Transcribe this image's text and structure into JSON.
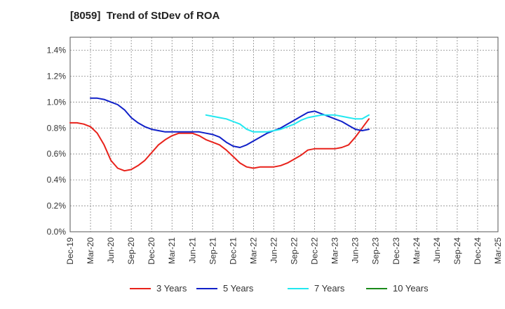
{
  "header": {
    "title": "[8059]  Trend of StDev of ROA"
  },
  "chart_data": {
    "type": "line",
    "title": "[8059]  Trend of StDev of ROA",
    "xlabel": "",
    "ylabel": "",
    "ylim": [
      0,
      1.5
    ],
    "grid": true,
    "legend_position": "bottom",
    "y_ticks": [
      "0.0%",
      "0.2%",
      "0.4%",
      "0.6%",
      "0.8%",
      "1.0%",
      "1.2%",
      "1.4%"
    ],
    "x_ticks": [
      "Dec-19",
      "Mar-20",
      "Jun-20",
      "Sep-20",
      "Dec-20",
      "Mar-21",
      "Jun-21",
      "Sep-21",
      "Dec-21",
      "Mar-22",
      "Jun-22",
      "Sep-22",
      "Dec-22",
      "Mar-23",
      "Jun-23",
      "Sep-23",
      "Dec-23",
      "Mar-24",
      "Jun-24",
      "Sep-24",
      "Dec-24",
      "Mar-25"
    ],
    "series": [
      {
        "name": "3 Years",
        "color": "#e8221b",
        "values": [
          0.84,
          0.84,
          0.83,
          0.81,
          0.76,
          0.67,
          0.55,
          0.49,
          0.47,
          0.48,
          0.51,
          0.55,
          0.61,
          0.67,
          0.71,
          0.74,
          0.76,
          0.76,
          0.76,
          0.74,
          0.71,
          0.69,
          0.67,
          0.63,
          0.58,
          0.53,
          0.5,
          0.49,
          0.5,
          0.5,
          0.5,
          0.51,
          0.53,
          0.56,
          0.59,
          0.63,
          0.64,
          0.64,
          0.64,
          0.64,
          0.65,
          0.67,
          0.73,
          0.8,
          0.87
        ]
      },
      {
        "name": "5 Years",
        "color": "#1020c8",
        "values": [
          null,
          null,
          null,
          1.03,
          1.03,
          1.02,
          1.0,
          0.98,
          0.94,
          0.88,
          0.84,
          0.81,
          0.79,
          0.78,
          0.77,
          0.77,
          0.77,
          0.77,
          0.77,
          0.77,
          0.76,
          0.75,
          0.73,
          0.69,
          0.66,
          0.65,
          0.67,
          0.7,
          0.73,
          0.76,
          0.78,
          0.8,
          0.83,
          0.86,
          0.89,
          0.92,
          0.93,
          0.91,
          0.89,
          0.87,
          0.85,
          0.82,
          0.79,
          0.78,
          0.79
        ]
      },
      {
        "name": "7 Years",
        "color": "#22e8f0",
        "values": [
          null,
          null,
          null,
          null,
          null,
          null,
          null,
          null,
          null,
          null,
          null,
          null,
          null,
          null,
          null,
          null,
          null,
          null,
          null,
          null,
          0.9,
          0.89,
          0.88,
          0.87,
          0.85,
          0.83,
          0.79,
          0.77,
          0.77,
          0.77,
          0.78,
          0.79,
          0.81,
          0.83,
          0.86,
          0.88,
          0.89,
          0.9,
          0.9,
          0.9,
          0.89,
          0.88,
          0.87,
          0.87,
          0.9
        ]
      },
      {
        "name": "10 Years",
        "color": "#1a8a1a",
        "values": []
      }
    ]
  }
}
